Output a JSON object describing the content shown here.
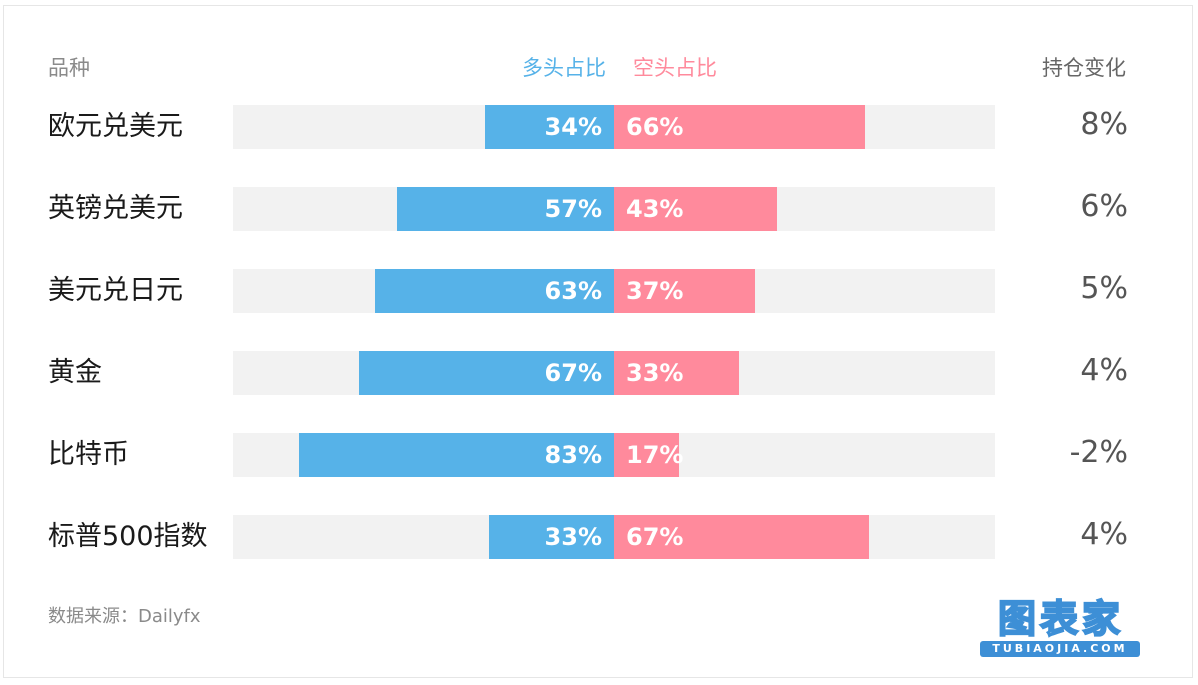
{
  "header": {
    "category_label": "品种",
    "long_label": "多头占比",
    "short_label": "空头占比",
    "change_label": "持仓变化"
  },
  "colors": {
    "long": "#56b2e8",
    "short": "#ff8a9c",
    "track": "#f2f2f2"
  },
  "chart_data": {
    "type": "bar",
    "orientation": "horizontal-diverging",
    "categories": [
      "欧元兑美元",
      "英镑兑美元",
      "美元兑日元",
      "黄金",
      "比特币",
      "标普500指数"
    ],
    "series": [
      {
        "name": "多头占比",
        "values": [
          34,
          57,
          63,
          67,
          83,
          33
        ],
        "labels": [
          "34%",
          "57%",
          "63%",
          "67%",
          "83%",
          "33%"
        ]
      },
      {
        "name": "空头占比",
        "values": [
          66,
          43,
          37,
          33,
          17,
          67
        ],
        "labels": [
          "66%",
          "43%",
          "37%",
          "33%",
          "17%",
          "67%"
        ]
      }
    ],
    "position_change": [
      "8%",
      "6%",
      "5%",
      "4%",
      "-2%",
      "4%"
    ],
    "xlim": [
      -100,
      100
    ],
    "grid": false
  },
  "footer": {
    "source": "数据来源：Dailyfx",
    "logo_main": "图表家",
    "logo_sub": "TUBIAOJIA.COM"
  }
}
